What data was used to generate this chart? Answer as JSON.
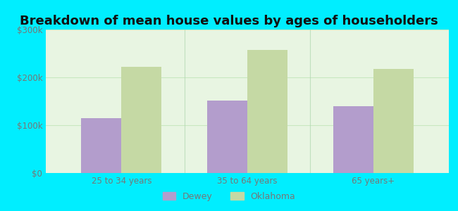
{
  "title": "Breakdown of mean house values by ages of householders",
  "categories": [
    "25 to 34 years",
    "35 to 64 years",
    "65 years+"
  ],
  "dewey_values": [
    115000,
    152000,
    140000
  ],
  "oklahoma_values": [
    222000,
    258000,
    218000
  ],
  "ylim": [
    0,
    300000
  ],
  "yticks": [
    0,
    100000,
    200000,
    300000
  ],
  "ytick_labels": [
    "$0",
    "$100k",
    "$200k",
    "$300k"
  ],
  "dewey_color": "#b39dcc",
  "oklahoma_color": "#c5d9a4",
  "background_outer": "#00eeff",
  "background_inner_top": "#e8f5e2",
  "background_inner_bottom": "#d0f0d0",
  "grid_color": "#c8e8c0",
  "bar_width": 0.32,
  "legend_dewey": "Dewey",
  "legend_oklahoma": "Oklahoma",
  "title_fontsize": 13,
  "tick_fontsize": 8.5,
  "legend_fontsize": 9,
  "tick_color": "#777777",
  "title_color": "#111111",
  "separator_color": "#b0d8b0"
}
